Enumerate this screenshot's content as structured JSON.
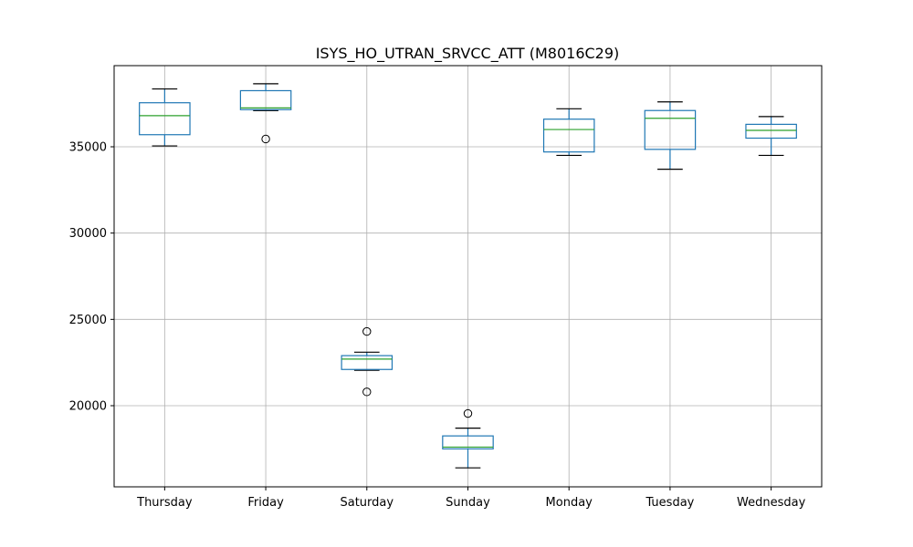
{
  "chart_data": {
    "type": "box",
    "title": "ISYS_HO_UTRAN_SRVCC_ATT (M8016C29)",
    "xlabel": "",
    "ylabel": "",
    "ylim": [
      15300,
      39700
    ],
    "yticks": [
      20000,
      25000,
      30000,
      35000
    ],
    "grid": true,
    "categories": [
      "Thursday",
      "Friday",
      "Saturday",
      "Sunday",
      "Monday",
      "Tuesday",
      "Wednesday"
    ],
    "boxes": [
      {
        "whisker_low": 35050,
        "q1": 35700,
        "median": 36800,
        "q3": 37550,
        "whisker_high": 38350,
        "fliers": []
      },
      {
        "whisker_low": 37100,
        "q1": 37150,
        "median": 37250,
        "q3": 38250,
        "whisker_high": 38650,
        "fliers": [
          35450
        ]
      },
      {
        "whisker_low": 22050,
        "q1": 22100,
        "median": 22700,
        "q3": 22900,
        "whisker_high": 23100,
        "fliers": [
          24300,
          20800
        ]
      },
      {
        "whisker_low": 16400,
        "q1": 17500,
        "median": 17600,
        "q3": 18250,
        "whisker_high": 18700,
        "fliers": [
          19550
        ]
      },
      {
        "whisker_low": 34500,
        "q1": 34700,
        "median": 36000,
        "q3": 36600,
        "whisker_high": 37200,
        "fliers": []
      },
      {
        "whisker_low": 33700,
        "q1": 34850,
        "median": 36650,
        "q3": 37100,
        "whisker_high": 37600,
        "fliers": []
      },
      {
        "whisker_low": 34500,
        "q1": 35500,
        "median": 35950,
        "q3": 36300,
        "whisker_high": 36750,
        "fliers": []
      }
    ]
  }
}
